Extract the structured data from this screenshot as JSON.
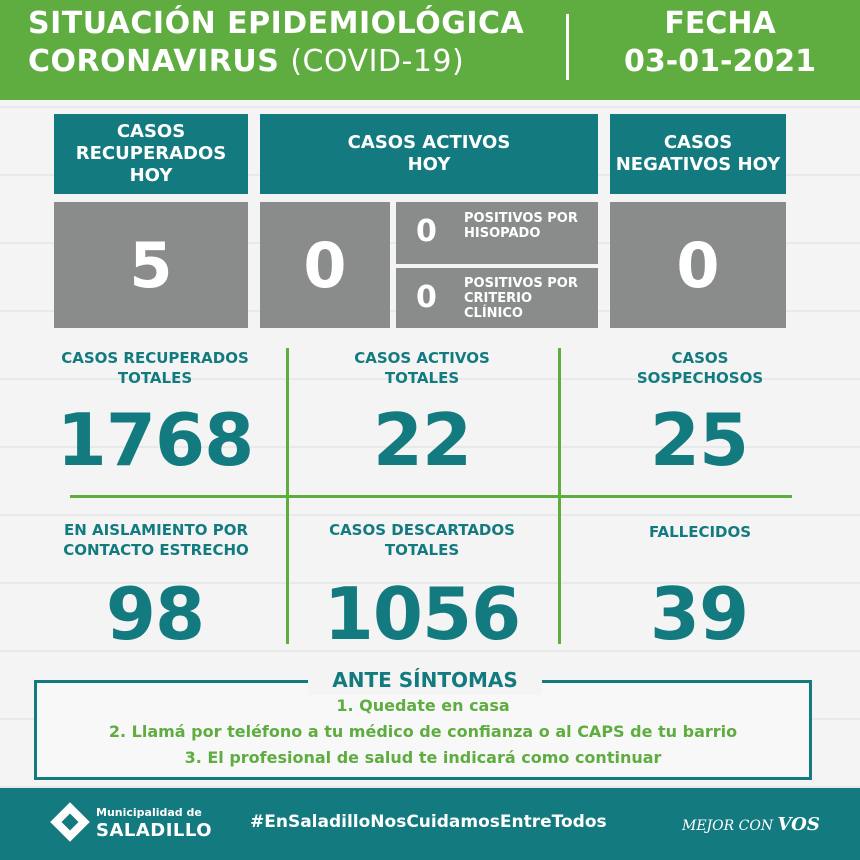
{
  "header": {
    "title_line1": "SITUACIÓN EPIDEMIOLÓGICA",
    "title_line2_bold": "CORONAVIRUS",
    "title_line2_light": "(COVID-19)",
    "date_label": "FECHA",
    "date": "03-01-2021"
  },
  "top_cards": {
    "recovered_today": {
      "label": "CASOS RECUPERADOS HOY",
      "value": "5"
    },
    "active_today": {
      "label": "CASOS ACTIVOS HOY",
      "value": "0",
      "swab": {
        "value": "0",
        "label": "POSITIVOS POR HISOPADO"
      },
      "clinical": {
        "value": "0",
        "label": "POSITIVOS POR CRITERIO CLÍNICO"
      }
    },
    "negative_today": {
      "label": "CASOS NEGATIVOS HOY",
      "value": "0"
    }
  },
  "stats": {
    "recovered_total": {
      "label": "CASOS RECUPERADOS TOTALES",
      "value": "1768"
    },
    "active_total": {
      "label": "CASOS ACTIVOS TOTALES",
      "value": "22"
    },
    "suspected": {
      "label": "CASOS SOSPECHOSOS",
      "value": "25"
    },
    "isolation": {
      "label": "EN AISLAMIENTO POR CONTACTO ESTRECHO",
      "value": "98"
    },
    "discarded_total": {
      "label": "CASOS DESCARTADOS TOTALES",
      "value": "1056"
    },
    "deceased": {
      "label": "FALLECIDOS",
      "value": "39"
    }
  },
  "symptoms": {
    "title": "ANTE SÍNTOMAS",
    "lines": [
      "1. Quedate en casa",
      "2. Llamá por teléfono a tu médico de confianza o al CAPS de tu barrio",
      "3. El profesional de salud te indicará como continuar"
    ]
  },
  "footer": {
    "logo_sub": "Municipalidad de",
    "logo_main": "SALADILLO",
    "hashtag": "#EnSaladilloNosCuidamosEntreTodos",
    "slogan": "MEJOR CON",
    "slogan_em": "VOS"
  },
  "colors": {
    "green": "#5fad40",
    "teal": "#137a80",
    "gray": "#8a8c8b"
  }
}
